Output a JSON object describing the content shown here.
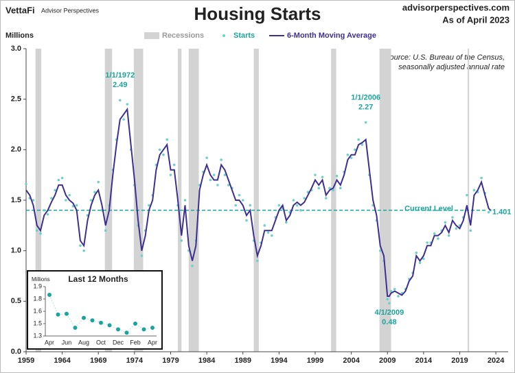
{
  "header": {
    "logo": "VettaFi",
    "brand": "Advisor Perspectives",
    "site": "advisorperspectives.com",
    "date": "As of April 2023"
  },
  "chart_data": [
    {
      "type": "line",
      "title": "Housing Starts",
      "y_label": "Millions",
      "source": [
        "Source: U.S. Bureau of the Census,",
        "seasonally adjusted annual rate"
      ],
      "recession_label": "Recessions",
      "recession_color": "#d3d3d3",
      "recessions": [
        [
          1960.3,
          1961.1
        ],
        [
          1969.9,
          1970.9
        ],
        [
          1973.9,
          1975.2
        ],
        [
          1980.0,
          1980.5
        ],
        [
          1981.5,
          1982.9
        ],
        [
          1990.5,
          1991.2
        ],
        [
          2001.2,
          2001.9
        ],
        [
          2007.9,
          2009.5
        ],
        [
          2020.1,
          2020.3
        ]
      ],
      "x": [
        1959,
        1959.5,
        1960,
        1960.5,
        1961,
        1961.5,
        1962,
        1962.5,
        1963,
        1963.5,
        1964,
        1964.5,
        1965,
        1965.5,
        1966,
        1966.5,
        1967,
        1967.5,
        1968,
        1968.5,
        1969,
        1969.5,
        1970,
        1970.5,
        1971,
        1971.5,
        1972,
        1972.5,
        1973,
        1973.5,
        1974,
        1974.5,
        1975,
        1975.5,
        1976,
        1976.5,
        1977,
        1977.5,
        1978,
        1978.5,
        1979,
        1979.5,
        1980,
        1980.5,
        1981,
        1981.5,
        1982,
        1982.5,
        1983,
        1983.5,
        1984,
        1984.5,
        1985,
        1985.5,
        1986,
        1986.5,
        1987,
        1987.5,
        1988,
        1988.5,
        1989,
        1989.5,
        1990,
        1990.5,
        1991,
        1991.5,
        1992,
        1992.5,
        1993,
        1993.5,
        1994,
        1994.5,
        1995,
        1995.5,
        1996,
        1996.5,
        1997,
        1997.5,
        1998,
        1998.5,
        1999,
        1999.5,
        2000,
        2000.5,
        2001,
        2001.5,
        2002,
        2002.5,
        2003,
        2003.5,
        2004,
        2004.5,
        2005,
        2005.5,
        2006,
        2006.5,
        2007,
        2007.5,
        2008,
        2008.5,
        2009,
        2009.25,
        2009.5,
        2010,
        2010.5,
        2011,
        2011.5,
        2012,
        2012.5,
        2013,
        2013.5,
        2014,
        2014.5,
        2015,
        2015.5,
        2016,
        2016.5,
        2017,
        2017.5,
        2018,
        2018.5,
        2019,
        2019.5,
        2020,
        2020.5,
        2021,
        2021.5,
        2022,
        2022.5,
        2023,
        2023.25
      ],
      "series": [
        {
          "name": "Starts",
          "kind": "scatter",
          "color": "#6fcfcb",
          "values": [
            1.66,
            1.52,
            1.5,
            1.2,
            1.17,
            1.4,
            1.36,
            1.52,
            1.6,
            1.7,
            1.72,
            1.5,
            1.55,
            1.44,
            1.45,
            1.05,
            1.0,
            1.35,
            1.5,
            1.58,
            1.68,
            1.4,
            1.2,
            1.45,
            1.8,
            2.1,
            2.49,
            2.3,
            2.45,
            2.0,
            1.65,
            1.25,
            0.95,
            1.2,
            1.45,
            1.55,
            1.85,
            2.0,
            1.95,
            2.1,
            1.75,
            1.85,
            1.45,
            1.1,
            1.5,
            1.0,
            0.85,
            1.1,
            1.65,
            1.78,
            1.92,
            1.7,
            1.75,
            1.65,
            1.9,
            1.75,
            1.65,
            1.62,
            1.45,
            1.55,
            1.5,
            1.3,
            1.45,
            1.1,
            0.9,
            1.08,
            1.25,
            1.18,
            1.15,
            1.33,
            1.45,
            1.42,
            1.28,
            1.38,
            1.5,
            1.45,
            1.4,
            1.52,
            1.58,
            1.6,
            1.75,
            1.62,
            1.73,
            1.52,
            1.62,
            1.6,
            1.74,
            1.62,
            1.78,
            1.95,
            1.92,
            2.0,
            2.1,
            2.05,
            2.27,
            1.75,
            1.45,
            1.3,
            1.0,
            0.9,
            0.52,
            0.48,
            0.6,
            0.62,
            0.55,
            0.58,
            0.62,
            0.72,
            0.78,
            0.98,
            0.88,
            0.92,
            1.08,
            1.08,
            1.17,
            1.12,
            1.2,
            1.28,
            1.15,
            1.33,
            1.22,
            1.25,
            1.33,
            1.55,
            1.2,
            1.6,
            1.58,
            1.72,
            1.57,
            1.38,
            1.4
          ]
        },
        {
          "name": "6-Month Moving Average",
          "kind": "line",
          "color": "#3d2f8f",
          "values": [
            1.6,
            1.55,
            1.45,
            1.25,
            1.2,
            1.35,
            1.4,
            1.48,
            1.55,
            1.65,
            1.65,
            1.55,
            1.5,
            1.47,
            1.4,
            1.1,
            1.05,
            1.3,
            1.45,
            1.55,
            1.6,
            1.45,
            1.25,
            1.4,
            1.75,
            2.05,
            2.3,
            2.35,
            2.4,
            2.05,
            1.7,
            1.3,
            1.0,
            1.15,
            1.4,
            1.5,
            1.8,
            1.95,
            2.0,
            2.05,
            1.8,
            1.8,
            1.5,
            1.15,
            1.45,
            1.05,
            0.9,
            1.05,
            1.6,
            1.75,
            1.85,
            1.75,
            1.7,
            1.7,
            1.85,
            1.8,
            1.7,
            1.6,
            1.5,
            1.5,
            1.45,
            1.35,
            1.4,
            1.15,
            0.95,
            1.05,
            1.2,
            1.2,
            1.2,
            1.3,
            1.4,
            1.45,
            1.3,
            1.35,
            1.45,
            1.48,
            1.45,
            1.48,
            1.55,
            1.62,
            1.7,
            1.65,
            1.7,
            1.55,
            1.6,
            1.62,
            1.7,
            1.65,
            1.75,
            1.9,
            1.95,
            1.95,
            2.05,
            2.07,
            2.1,
            1.8,
            1.5,
            1.35,
            1.05,
            0.95,
            0.55,
            0.55,
            0.58,
            0.6,
            0.58,
            0.56,
            0.6,
            0.7,
            0.75,
            0.95,
            0.9,
            0.95,
            1.05,
            1.05,
            1.15,
            1.15,
            1.18,
            1.25,
            1.18,
            1.3,
            1.25,
            1.22,
            1.3,
            1.45,
            1.25,
            1.55,
            1.6,
            1.68,
            1.55,
            1.42,
            1.4
          ]
        }
      ],
      "annotations": [
        {
          "text": "1/1/1972",
          "x": 1972,
          "value": 2.49,
          "pos": "above"
        },
        {
          "text": "1/1/2006",
          "x": 2006,
          "value": 2.27,
          "pos": "above"
        },
        {
          "text": "4/1/2009",
          "x": 2009.25,
          "value": 0.48,
          "pos": "below"
        }
      ],
      "reference_line": {
        "label": "Current Level",
        "value": 1.401,
        "color": "#1aa59c"
      },
      "xlim": [
        1959,
        2025.7
      ],
      "xticks": [
        1959,
        1964,
        1969,
        1974,
        1979,
        1984,
        1989,
        1994,
        1999,
        2004,
        2009,
        2014,
        2019,
        2024
      ],
      "ylim": [
        0,
        3
      ],
      "yticks": [
        {
          "value": 0,
          "label": "0.0"
        },
        0.5,
        {
          "value": 1,
          "label": "1.0"
        },
        1.5,
        {
          "value": 2,
          "label": "2.0"
        },
        2.5,
        {
          "value": 3,
          "label": "3.0"
        }
      ]
    },
    {
      "type": "scatter",
      "title": "Last 12 Months",
      "y_label": "Millions",
      "color": "#1aa59c",
      "categories": [
        "Apr",
        null,
        "Jun",
        null,
        "Aug",
        null,
        "Oct",
        null,
        "Dec",
        null,
        "Feb",
        null,
        "Apr"
      ],
      "values": [
        1.8,
        1.56,
        1.57,
        1.4,
        1.52,
        1.49,
        1.46,
        1.43,
        1.38,
        1.34,
        1.45,
        1.38,
        1.4
      ],
      "ylim": [
        1.3,
        1.9
      ],
      "yticks": [
        1.3,
        {
          "value": 1.45,
          "label": "1.5"
        },
        1.6,
        {
          "value": 1.75,
          "label": "1.8"
        },
        1.9
      ]
    }
  ]
}
